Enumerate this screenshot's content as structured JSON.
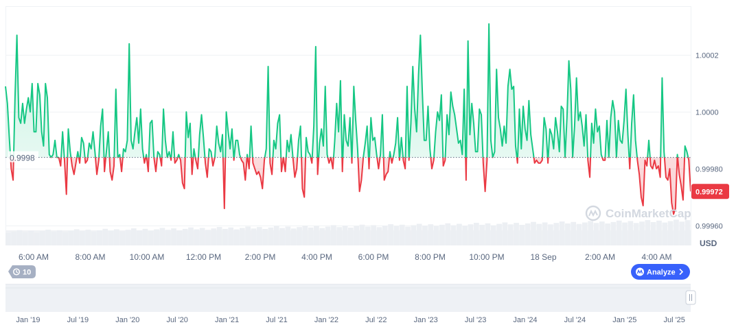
{
  "watermark": "CoinMarketCap",
  "currency_label": "USD",
  "history_pill": "10",
  "analyze_button": "Analyze",
  "chart_data": {
    "type": "line",
    "title": "",
    "baseline": 0.99984,
    "baseline_label": "0.9998",
    "current_value_label": "0.99972",
    "ylim": [
      0.99953,
      1.00037
    ],
    "y_ticks": [
      {
        "value": 1.0002,
        "label": "1.0002"
      },
      {
        "value": 1.0,
        "label": "1.0000"
      },
      {
        "value": 0.9998,
        "label": "0.99980"
      },
      {
        "value": 0.9996,
        "label": "0.99960"
      }
    ],
    "x_ticks": [
      "6:00 AM",
      "8:00 AM",
      "10:00 AM",
      "12:00 PM",
      "2:00 PM",
      "4:00 PM",
      "6:00 PM",
      "8:00 PM",
      "10:00 PM",
      "18 Sep",
      "2:00 AM",
      "4:00 AM"
    ],
    "navigator_ticks": [
      "Jan '19",
      "Jul '19",
      "Jan '20",
      "Jul '20",
      "Jan '21",
      "Jul '21",
      "Jan '22",
      "Jul '22",
      "Jan '23",
      "Jul '23",
      "Jan '24",
      "Jul '24",
      "Jan '25",
      "Jul '25"
    ],
    "colors": {
      "up": "#16c784",
      "down": "#ea3943",
      "up_fill": "#16c784",
      "down_fill": "#ea3943"
    },
    "series": [
      {
        "name": "Price (USD)",
        "values": [
          1.00009,
          1.00003,
          0.99991,
          0.9998,
          0.99976,
          1.00005,
          1.00027,
          0.99998,
          0.99996,
          1.00003,
          0.99996,
          1.00001,
          1.00005,
          1.0,
          1.0001,
          0.99993,
          0.99993,
          1.0001,
          1.00006,
          0.99993,
          0.99988,
          1.0001,
          1.00005,
          0.99985,
          0.99984,
          0.99985,
          0.9999,
          0.99984,
          0.99984,
          0.99981,
          0.99993,
          0.99983,
          0.99971,
          0.99994,
          0.99986,
          0.99981,
          0.99978,
          0.99982,
          0.99986,
          0.99982,
          0.99991,
          0.99989,
          0.99982,
          0.99983,
          0.99989,
          0.99987,
          0.99993,
          0.99986,
          0.99978,
          0.99983,
          0.99995,
          1.00001,
          0.99979,
          0.99986,
          0.99993,
          0.99979,
          0.99976,
          0.99981,
          1.00008,
          0.99984,
          0.99985,
          0.99979,
          0.99987,
          0.99986,
          0.9999,
          1.00024,
          0.9999,
          0.99987,
          0.99993,
          0.99998,
          0.99989,
          1.00001,
          0.99987,
          0.99982,
          0.99985,
          0.99979,
          0.99996,
          0.99997,
          0.99984,
          0.99979,
          0.99986,
          0.99985,
          0.99981,
          1.00001,
          0.9999,
          0.99984,
          0.99986,
          0.99983,
          0.99993,
          0.99982,
          0.99983,
          0.99985,
          0.99983,
          0.99975,
          0.99973,
          1.0,
          0.99991,
          0.99996,
          0.99978,
          0.99987,
          0.99983,
          0.9998,
          0.99992,
          0.99999,
          0.99991,
          0.99982,
          0.99977,
          0.99987,
          0.99986,
          0.99981,
          0.99984,
          0.99995,
          0.99989,
          0.99986,
          0.99992,
          0.99966,
          1.0,
          0.99993,
          0.99987,
          0.99994,
          0.99983,
          0.9999,
          0.9999,
          0.99985,
          0.99983,
          0.99982,
          0.99976,
          0.99985,
          0.9998,
          0.99995,
          0.99982,
          0.9998,
          0.99978,
          0.99979,
          0.99977,
          0.99973,
          0.99983,
          0.99987,
          1.00016,
          0.99982,
          0.99978,
          0.9999,
          0.99987,
          0.99996,
          0.99999,
          0.99979,
          0.99984,
          0.99979,
          0.9999,
          0.99986,
          0.99992,
          0.99984,
          0.99977,
          0.9998,
          0.9999,
          0.99995,
          0.99973,
          0.9997,
          0.99991,
          0.99986,
          0.99985,
          0.99982,
          0.99995,
          1.00023,
          0.99978,
          0.99989,
          0.99994,
          0.99988,
          1.00009,
          0.99985,
          0.99982,
          0.99984,
          0.9998,
          0.9999,
          1.00003,
          0.99993,
          1.00011,
          0.99979,
          0.99999,
          0.9999,
          0.99988,
          0.99998,
          0.99982,
          1.00009,
          0.99997,
          0.99987,
          0.99972,
          0.99976,
          0.99984,
          0.99989,
          0.99995,
          0.9998,
          0.99998,
          0.9999,
          0.99991,
          0.99985,
          0.9998,
          0.99985,
          0.99999,
          0.99976,
          0.99978,
          0.99979,
          0.99986,
          0.99982,
          0.99985,
          0.99989,
          0.99998,
          0.99983,
          0.99991,
          0.99983,
          0.9998,
          1.00009,
          0.99983,
          0.99996,
          1.00016,
          1.00001,
          0.99993,
          1.00013,
          1.00027,
          1.00007,
          0.9999,
          0.9999,
          1.00002,
          0.99987,
          0.9998,
          0.99983,
          0.99993,
          1.0,
          0.99997,
          1.00006,
          0.99981,
          0.99983,
          0.99999,
          0.99992,
          1.00007,
          1.00002,
          0.99999,
          0.99994,
          0.99989,
          0.9999,
          0.99985,
          1.00008,
          0.99976,
          1.00025,
          0.99992,
          1.00003,
          0.99996,
          0.99986,
          0.99986,
          1.00001,
          0.99999,
          0.99982,
          0.99972,
          0.99983,
          1.00031,
          0.9999,
          0.99984,
          0.99986,
          1.00015,
          0.99998,
          0.99994,
          0.99988,
          0.99995,
          0.99989,
          1.00009,
          1.00015,
          1.00008,
          1.00009,
          0.99988,
          0.99982,
          1.00001,
          0.99987,
          1.00002,
          0.99994,
          0.9999,
          1.00004,
          0.99992,
          0.99987,
          0.99982,
          0.99983,
          0.99982,
          0.99982,
          0.99983,
          0.99998,
          0.99994,
          0.99982,
          0.99994,
          0.99992,
          0.99987,
          0.99998,
          0.99993,
          0.99986,
          1.00002,
          1.00001,
          0.99984,
          0.99998,
          1.00018,
          1.00008,
          0.99984,
          0.99995,
          1.00012,
          0.99997,
          1.0,
          0.99995,
          0.99988,
          0.99999,
          0.99983,
          0.99977,
          0.99996,
          0.99989,
          1.00001,
          0.99993,
          0.99995,
          0.99985,
          0.99983,
          0.99983,
          0.99997,
          0.99984,
          0.99998,
          1.00004,
          1.0,
          0.99984,
          0.99997,
          0.9999,
          0.99989,
          0.99997,
          1.00008,
          0.99992,
          0.9998,
          0.99996,
          1.00006,
          0.9999,
          0.99983,
          0.99978,
          0.9997,
          0.99967,
          0.99983,
          0.99981,
          0.9999,
          0.99981,
          0.9998,
          0.99983,
          0.9998,
          0.99981,
          0.99977,
          1.00012,
          0.99986,
          0.99977,
          0.99976,
          0.9998,
          0.99968,
          0.99964,
          0.99966,
          0.99985,
          0.99978,
          0.99974,
          0.99969,
          0.99988,
          0.99986,
          0.99983,
          0.99972
        ]
      }
    ]
  }
}
